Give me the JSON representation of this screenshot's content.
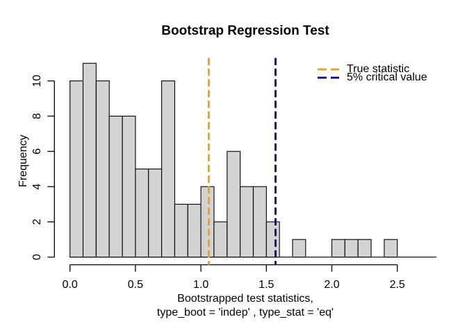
{
  "chart_data": {
    "type": "bar",
    "subtype": "histogram",
    "title": "Bootstrap Regression Test",
    "xlabel_line1": "Bootstrapped test statistics,",
    "xlabel_line2": "type_boot = 'indep' , type_stat = 'eq'",
    "ylabel": "Frequency",
    "bin_start": 0.0,
    "bin_width": 0.1,
    "counts": [
      10,
      11,
      10,
      8,
      8,
      5,
      5,
      10,
      3,
      3,
      4,
      2,
      6,
      4,
      4,
      2,
      0,
      1,
      0,
      0,
      1,
      1,
      1,
      0,
      1,
      0,
      0,
      0
    ],
    "total_count": 100,
    "xticks": [
      0.0,
      0.5,
      1.0,
      1.5,
      2.0,
      2.5
    ],
    "xtick_labels": [
      "0.0",
      "0.5",
      "1.0",
      "1.5",
      "2.0",
      "2.5"
    ],
    "yticks": [
      0,
      2,
      4,
      6,
      8,
      10
    ],
    "ytick_labels": [
      "0",
      "2",
      "4",
      "6",
      "8",
      "10"
    ],
    "xlim": [
      0,
      2.8
    ],
    "ylim": [
      0,
      11
    ],
    "grid": false,
    "bar_fill": "#d3d3d3",
    "bar_stroke": "#000000",
    "axis_color": "#000000",
    "vlines": [
      {
        "value": 1.06,
        "color": "#ff9d00",
        "label": "True statistic"
      },
      {
        "value": 1.57,
        "color": "#00008b",
        "label": "5% critical value"
      }
    ],
    "legend_position": "topright"
  }
}
